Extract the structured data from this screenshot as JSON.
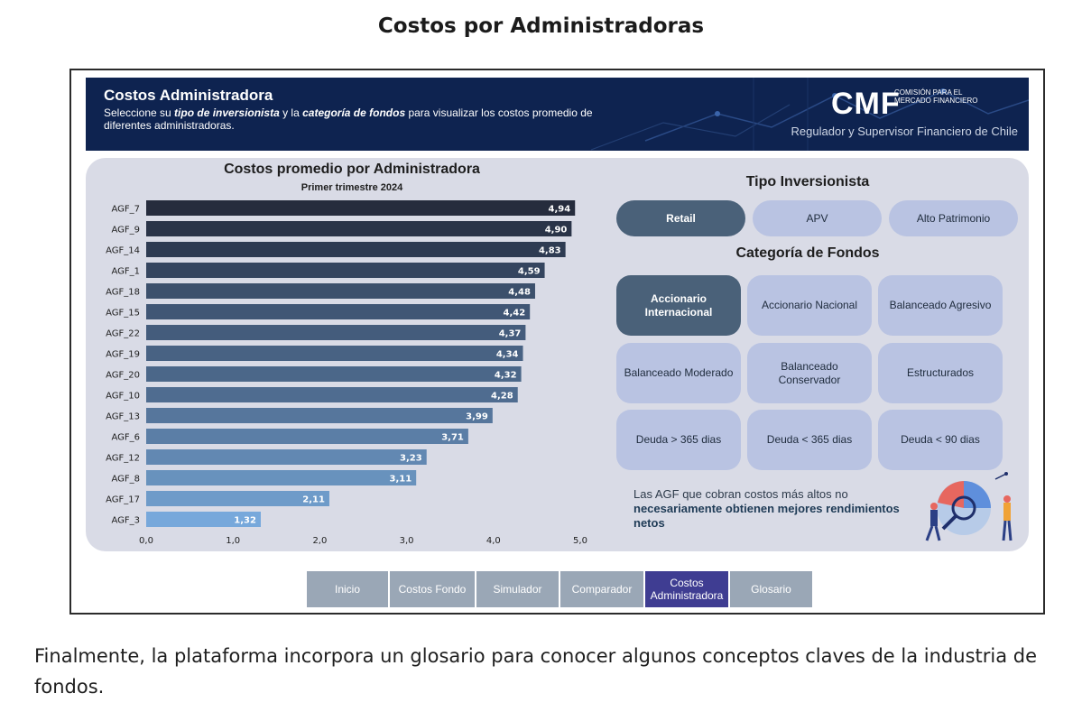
{
  "page": {
    "title": "Costos por Administradoras",
    "paragraph": "Finalmente, la plataforma incorpora un glosario para conocer algunos conceptos claves de la industria de fondos."
  },
  "banner": {
    "title": "Costos Administradora",
    "subtitle_prefix": "Seleccione su ",
    "subtitle_em1": "tipo de inversionista",
    "subtitle_mid": " y la ",
    "subtitle_em2": "categoría de fondos",
    "subtitle_suffix": " para visualizar los costos promedio de diferentes administradoras.",
    "logo_text": "CMF",
    "logo_caption": "COMISIÓN PARA EL MERCADO FINANCIERO",
    "tagline": "Regulador y Supervisor Financiero de Chile",
    "bg_color": "#0e2350"
  },
  "chart_data": {
    "type": "bar",
    "orientation": "horizontal",
    "title": "Costos promedio por Administradora",
    "subtitle": "Primer trimestre 2024",
    "categories": [
      "AGF_7",
      "AGF_9",
      "AGF_14",
      "AGF_1",
      "AGF_18",
      "AGF_15",
      "AGF_22",
      "AGF_19",
      "AGF_20",
      "AGF_10",
      "AGF_13",
      "AGF_6",
      "AGF_12",
      "AGF_8",
      "AGF_17",
      "AGF_3"
    ],
    "values": [
      4.94,
      4.9,
      4.83,
      4.59,
      4.48,
      4.42,
      4.37,
      4.34,
      4.32,
      4.28,
      3.99,
      3.71,
      3.23,
      3.11,
      2.11,
      1.32
    ],
    "value_labels": [
      "4,94",
      "4,90",
      "4,83",
      "4,59",
      "4,48",
      "4,42",
      "4,37",
      "4,34",
      "4,32",
      "4,28",
      "3,99",
      "3,71",
      "3,23",
      "3,11",
      "2,11",
      "1,32"
    ],
    "xticks": [
      "0,0",
      "1,0",
      "2,0",
      "3,0",
      "4,0",
      "5,0"
    ],
    "xlim": [
      0,
      5
    ],
    "colors": [
      "#262c3d",
      "#2a3448",
      "#2e3b52",
      "#35455f",
      "#3c506c",
      "#405675",
      "#445c7c",
      "#486283",
      "#4b6789",
      "#4f6c90",
      "#56769c",
      "#5b7ea6",
      "#6288b2",
      "#6892bd",
      "#6e9bc9",
      "#77a8db"
    ]
  },
  "investor": {
    "heading": "Tipo Inversionista",
    "options": [
      "Retail",
      "APV",
      "Alto Patrimonio"
    ],
    "selected": "Retail"
  },
  "funds": {
    "heading": "Categoría de Fondos",
    "options": [
      "Accionario Internacional",
      "Accionario Nacional",
      "Balanceado Agresivo",
      "Balanceado Moderado",
      "Balanceado Conservador",
      "Estructurados",
      "Deuda > 365 dias",
      "Deuda < 365 dias",
      "Deuda < 90 dias"
    ],
    "selected": "Accionario Internacional"
  },
  "note": {
    "normal": "Las AGF que cobran costos más altos no ",
    "bold": "necesariamente obtienen mejores rendimientos netos"
  },
  "nav": {
    "items": [
      "Inicio",
      "Costos Fondo",
      "Simulador",
      "Comparador",
      "Costos Administradora",
      "Glosario"
    ],
    "active": "Costos Administradora"
  }
}
